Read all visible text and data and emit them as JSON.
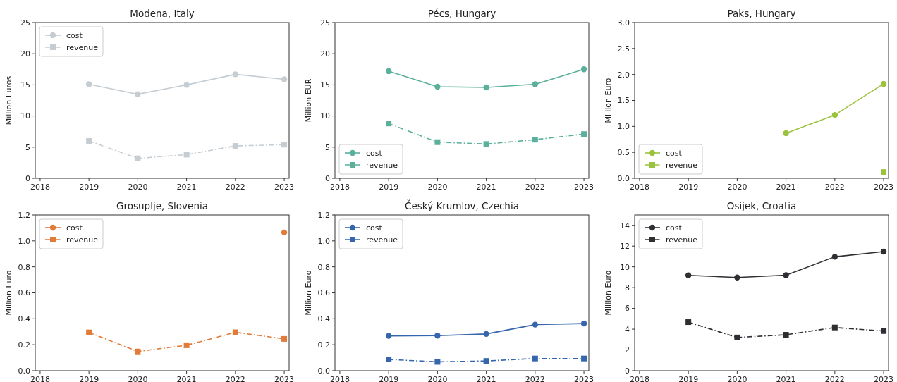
{
  "chart_data": [
    {
      "type": "line",
      "title": "Modena, Italy",
      "ylabel": "Million Euros",
      "x": [
        2019,
        2020,
        2021,
        2022,
        2023
      ],
      "xlim": [
        2017.9,
        2023.1
      ],
      "xticks": [
        2018,
        2019,
        2020,
        2021,
        2022,
        2023
      ],
      "ylim": [
        0,
        25
      ],
      "yticks": [
        0,
        5,
        10,
        15,
        20,
        25
      ],
      "legend": "top left",
      "series": [
        {
          "name": "cost",
          "color": "#c5cdd3",
          "values": [
            15.1,
            13.5,
            15.0,
            16.7,
            15.9
          ],
          "marker": "circle",
          "line_style": "solid"
        },
        {
          "name": "revenue",
          "color": "#c5cdd3",
          "values": [
            6.0,
            3.2,
            3.8,
            5.2,
            5.4
          ],
          "marker": "square",
          "line_style": "dashed"
        }
      ]
    },
    {
      "type": "line",
      "title": "Pécs, Hungary",
      "ylabel": "Million EUR",
      "x": [
        2019,
        2020,
        2021,
        2022,
        2023
      ],
      "xlim": [
        2017.9,
        2023.1
      ],
      "xticks": [
        2018,
        2019,
        2020,
        2021,
        2022,
        2023
      ],
      "ylim": [
        0,
        25
      ],
      "yticks": [
        0,
        5,
        10,
        15,
        20,
        25
      ],
      "legend": "bottom left",
      "series": [
        {
          "name": "cost",
          "color": "#5bb09c",
          "values": [
            17.2,
            14.7,
            14.6,
            15.1,
            17.5
          ],
          "marker": "circle",
          "line_style": "solid"
        },
        {
          "name": "revenue",
          "color": "#5bb09c",
          "values": [
            8.8,
            5.8,
            5.5,
            6.2,
            7.1
          ],
          "marker": "square",
          "line_style": "dashed"
        }
      ]
    },
    {
      "type": "line",
      "title": "Paks, Hungary",
      "ylabel": "Million Euro",
      "xlim": [
        2017.9,
        2023.1
      ],
      "xticks": [
        2018,
        2019,
        2020,
        2021,
        2022,
        2023
      ],
      "ylim": [
        0,
        3
      ],
      "yticks": [
        {
          "value": 0,
          "label": "0.0"
        },
        {
          "value": 0.5,
          "label": "0.5"
        },
        {
          "value": 1,
          "label": "1.0"
        },
        {
          "value": 1.5,
          "label": "1.5"
        },
        {
          "value": 2,
          "label": "2.0"
        },
        {
          "value": 2.5,
          "label": "2.5"
        },
        {
          "value": 3,
          "label": "3.0"
        }
      ],
      "legend": "bottom left",
      "series": [
        {
          "name": "cost",
          "color": "#9bc23c",
          "x": [
            2021,
            2022,
            2023
          ],
          "values": [
            0.87,
            1.22,
            1.82
          ],
          "marker": "circle",
          "line_style": "solid"
        },
        {
          "name": "revenue",
          "color": "#9bc23c",
          "x": [
            2023
          ],
          "values": [
            0.12
          ],
          "marker": "square",
          "line_style": "dashed"
        }
      ]
    },
    {
      "type": "line",
      "title": "Grosuplje, Slovenia",
      "ylabel": "Million Euro",
      "xlim": [
        2017.9,
        2023.1
      ],
      "xticks": [
        2018,
        2019,
        2020,
        2021,
        2022,
        2023
      ],
      "ylim": [
        0,
        1.2
      ],
      "yticks": [
        {
          "value": 0,
          "label": "0.0"
        },
        {
          "value": 0.2,
          "label": "0.2"
        },
        {
          "value": 0.4,
          "label": "0.4"
        },
        {
          "value": 0.6,
          "label": "0.6"
        },
        {
          "value": 0.8,
          "label": "0.8"
        },
        {
          "value": 1,
          "label": "1.0"
        },
        {
          "value": 1.2,
          "label": "1.2"
        }
      ],
      "legend": "top left",
      "series": [
        {
          "name": "cost",
          "color": "#e07b39",
          "x": [
            2023
          ],
          "values": [
            1.065
          ],
          "marker": "circle",
          "line_style": "solid"
        },
        {
          "name": "revenue",
          "color": "#e07b39",
          "x": [
            2019,
            2020,
            2021,
            2022,
            2023
          ],
          "values": [
            0.295,
            0.148,
            0.196,
            0.296,
            0.245
          ],
          "marker": "square",
          "line_style": "dashed"
        }
      ]
    },
    {
      "type": "line",
      "title": "Český Krumlov, Czechia",
      "ylabel": "Million Euro",
      "x": [
        2019,
        2020,
        2021,
        2022,
        2023
      ],
      "xlim": [
        2017.9,
        2023.1
      ],
      "xticks": [
        2018,
        2019,
        2020,
        2021,
        2022,
        2023
      ],
      "ylim": [
        0,
        1.2
      ],
      "yticks": [
        {
          "value": 0,
          "label": "0.0"
        },
        {
          "value": 0.2,
          "label": "0.2"
        },
        {
          "value": 0.4,
          "label": "0.4"
        },
        {
          "value": 0.6,
          "label": "0.6"
        },
        {
          "value": 0.8,
          "label": "0.8"
        },
        {
          "value": 1,
          "label": "1.0"
        },
        {
          "value": 1.2,
          "label": "1.2"
        }
      ],
      "legend": "top left",
      "series": [
        {
          "name": "cost",
          "color": "#3465ad",
          "values": [
            0.268,
            0.27,
            0.283,
            0.355,
            0.363
          ],
          "marker": "circle",
          "line_style": "solid"
        },
        {
          "name": "revenue",
          "color": "#3465ad",
          "values": [
            0.087,
            0.068,
            0.075,
            0.094,
            0.094
          ],
          "marker": "square",
          "line_style": "dashed"
        }
      ]
    },
    {
      "type": "line",
      "title": "Osijek, Croatia",
      "ylabel": "Million Euro",
      "x": [
        2019,
        2020,
        2021,
        2022,
        2023
      ],
      "xlim": [
        2017.9,
        2023.1
      ],
      "xticks": [
        2018,
        2019,
        2020,
        2021,
        2022,
        2023
      ],
      "ylim": [
        0,
        15
      ],
      "yticks": [
        0,
        2,
        4,
        6,
        8,
        10,
        12,
        14
      ],
      "legend": "top left",
      "series": [
        {
          "name": "cost",
          "color": "#2d2f33",
          "values": [
            9.18,
            8.98,
            9.2,
            10.97,
            11.47
          ],
          "marker": "circle",
          "line_style": "solid"
        },
        {
          "name": "revenue",
          "color": "#2d2f33",
          "values": [
            4.68,
            3.2,
            3.46,
            4.16,
            3.82
          ],
          "marker": "square",
          "line_style": "dashed"
        }
      ]
    }
  ]
}
